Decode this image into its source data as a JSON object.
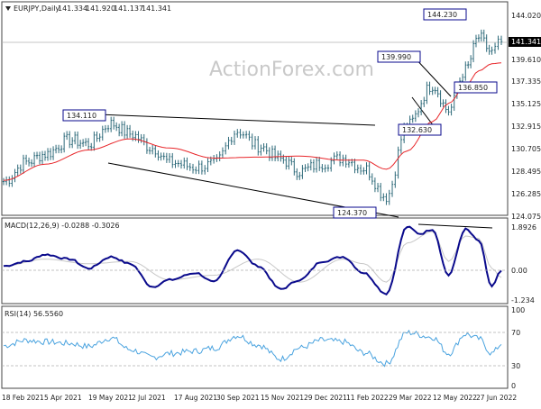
{
  "header": {
    "symbol": "EURJPY,Daily",
    "ohlc": [
      "141.334",
      "141.920",
      "141.137",
      "141.341"
    ],
    "watermark": "ActionForex.com"
  },
  "colors": {
    "price_bars": "#2e6a7a",
    "moving_average": "#e8262a",
    "macd_line": "#0a0a8c",
    "macd_signal": "#c8c8c8",
    "rsi_line": "#4aa3df",
    "trendline": "#000000",
    "box_border": "#0a0a8c"
  },
  "chart_data": [
    {
      "type": "candlestick",
      "panel": "price",
      "series": [
        {
          "name": "EURJPY,Daily",
          "x": [
            "2021-01-25",
            "2021-02-18",
            "2021-03-10",
            "2021-04-05",
            "2021-04-25",
            "2021-05-19",
            "2021-06-08",
            "2021-07-02",
            "2021-07-20",
            "2021-08-17",
            "2021-09-05",
            "2021-09-30",
            "2021-10-22",
            "2021-11-15",
            "2021-12-05",
            "2021-12-29",
            "2022-01-20",
            "2022-02-11",
            "2022-03-07",
            "2022-03-29",
            "2022-04-25",
            "2022-05-12",
            "2022-05-30",
            "2022-06-13",
            "2022-06-27",
            "2022-07-07"
          ],
          "close": [
            127.5,
            129.4,
            130.2,
            131.6,
            131.2,
            133.2,
            132.2,
            130.8,
            129.4,
            128.9,
            129.2,
            132.5,
            131.0,
            129.7,
            128.5,
            129.3,
            129.8,
            128.8,
            126.0,
            133.0,
            137.0,
            134.5,
            138.5,
            141.7,
            140.2,
            141.3
          ]
        },
        {
          "name": "moving-average",
          "x": [
            "2021-01-25",
            "2021-03-10",
            "2021-04-25",
            "2021-06-08",
            "2021-07-20",
            "2021-09-05",
            "2021-10-22",
            "2021-12-05",
            "2022-01-20",
            "2022-02-11",
            "2022-03-07",
            "2022-03-29",
            "2022-04-25",
            "2022-05-12",
            "2022-05-30",
            "2022-06-13",
            "2022-06-27",
            "2022-07-07"
          ],
          "values": [
            127.6,
            129.2,
            130.6,
            131.7,
            130.8,
            129.8,
            129.9,
            130.0,
            129.6,
            129.6,
            128.7,
            130.5,
            133.4,
            135.2,
            136.9,
            138.4,
            139.1,
            139.2
          ]
        }
      ],
      "ylim": [
        124.075,
        144.5
      ],
      "yticks": [
        "144.020",
        "141.341",
        "139.610",
        "137.335",
        "135.125",
        "132.915",
        "130.705",
        "128.495",
        "126.285",
        "124.075"
      ],
      "annotations": [
        {
          "label": "144.230",
          "x": "2022-06-09",
          "y": 144.23
        },
        {
          "label": "139.990",
          "x": "2022-04-21",
          "y": 139.99
        },
        {
          "label": "136.850",
          "x": "2022-06-28",
          "y": 136.85
        },
        {
          "label": "134.110",
          "x": "2021-05-25",
          "y": 134.11
        },
        {
          "label": "132.630",
          "x": "2022-04-27",
          "y": 132.63
        },
        {
          "label": "124.370",
          "x": "2022-03-07",
          "y": 124.37
        }
      ],
      "current_price": "141.341"
    },
    {
      "type": "line",
      "panel": "macd",
      "label": "MACD(12,26,9) -0.0288 -0.3026",
      "series": [
        {
          "name": "MACD",
          "x": [
            "2021-01-25",
            "2021-02-18",
            "2021-03-10",
            "2021-04-05",
            "2021-04-25",
            "2021-05-19",
            "2021-06-08",
            "2021-07-02",
            "2021-07-20",
            "2021-08-17",
            "2021-09-05",
            "2021-09-30",
            "2021-10-22",
            "2021-11-15",
            "2021-12-05",
            "2021-12-29",
            "2022-01-20",
            "2022-02-11",
            "2022-03-07",
            "2022-03-29",
            "2022-04-12",
            "2022-04-25",
            "2022-05-12",
            "2022-05-30",
            "2022-06-13",
            "2022-06-27",
            "2022-07-07"
          ],
          "values": [
            0.2,
            0.4,
            0.7,
            0.5,
            0.1,
            0.6,
            0.3,
            -0.7,
            -0.4,
            -0.1,
            -0.5,
            0.9,
            0.2,
            -0.8,
            -0.4,
            0.4,
            0.6,
            -0.1,
            -1.0,
            1.9,
            1.6,
            1.8,
            -0.2,
            1.8,
            1.3,
            -0.7,
            0.0
          ]
        },
        {
          "name": "Signal",
          "x": [
            "2021-01-25",
            "2021-03-10",
            "2021-04-25",
            "2021-06-08",
            "2021-07-20",
            "2021-09-05",
            "2021-10-22",
            "2021-12-05",
            "2022-01-20",
            "2022-02-11",
            "2022-03-07",
            "2022-03-29",
            "2022-04-25",
            "2022-05-12",
            "2022-05-30",
            "2022-06-13",
            "2022-06-27",
            "2022-07-07"
          ],
          "values": [
            0.2,
            0.5,
            0.3,
            0.4,
            -0.4,
            -0.2,
            0.5,
            -0.5,
            0.5,
            0.3,
            -0.5,
            1.2,
            1.7,
            0.4,
            1.5,
            1.4,
            0.1,
            -0.3
          ]
        }
      ],
      "ylim": [
        -1.234,
        1.8926
      ],
      "yticks": [
        "1.8926",
        "0.00",
        "-1.234"
      ]
    },
    {
      "type": "line",
      "panel": "rsi",
      "label": "RSI(14) 56.5560",
      "series": [
        {
          "name": "RSI",
          "x": [
            "2021-01-25",
            "2021-02-18",
            "2021-03-10",
            "2021-04-05",
            "2021-04-25",
            "2021-05-19",
            "2021-06-08",
            "2021-07-02",
            "2021-07-20",
            "2021-08-17",
            "2021-09-05",
            "2021-09-30",
            "2021-10-22",
            "2021-11-15",
            "2021-12-05",
            "2021-12-29",
            "2022-01-20",
            "2022-02-11",
            "2022-03-07",
            "2022-03-29",
            "2022-04-25",
            "2022-05-12",
            "2022-05-30",
            "2022-06-13",
            "2022-06-27",
            "2022-07-07"
          ],
          "values": [
            55,
            62,
            60,
            58,
            54,
            65,
            50,
            40,
            45,
            48,
            52,
            68,
            56,
            38,
            52,
            62,
            60,
            46,
            32,
            72,
            66,
            45,
            70,
            64,
            45,
            56.6
          ]
        }
      ],
      "ylim": [
        0,
        100
      ],
      "yticks": [
        "100",
        "70",
        "30",
        "0"
      ]
    }
  ],
  "x_axis_labels": [
    "18 Feb 2021",
    "5 Apr 2021",
    "19 May 2021",
    "2 Jul 2021",
    "17 Aug 2021",
    "30 Sep 2021",
    "15 Nov 2021",
    "29 Dec 2021",
    "11 Feb 2022",
    "29 Mar 2022",
    "12 May 2022",
    "27 Jun 2022"
  ]
}
